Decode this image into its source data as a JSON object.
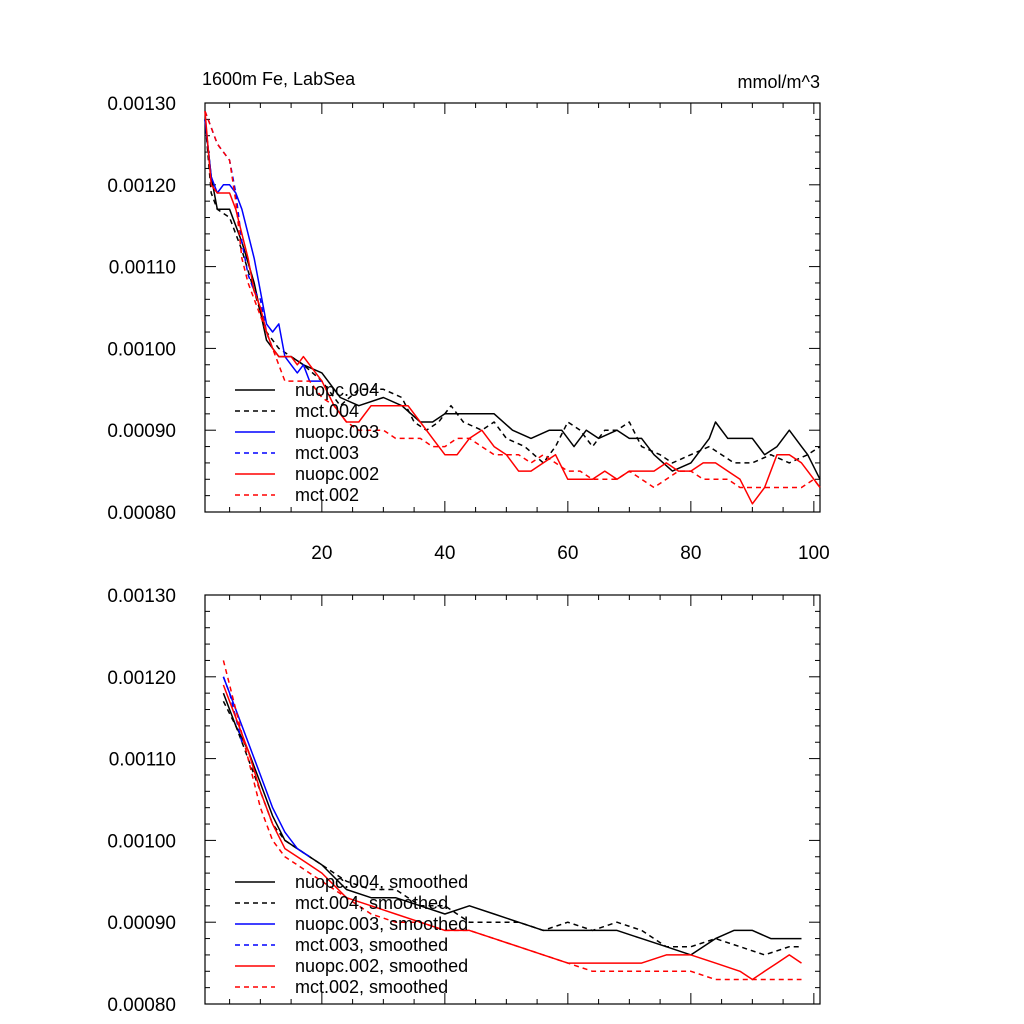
{
  "chart_data": [
    {
      "type": "line",
      "title_left": "1600m Fe, LabSea",
      "title_right": "mmol/m^3",
      "xlim": [
        1,
        101
      ],
      "ylim": [
        0.0008,
        0.0013
      ],
      "xticks": [
        20,
        40,
        60,
        80,
        100
      ],
      "yticks": [
        0.0008,
        0.0009,
        0.001,
        0.0011,
        0.0012,
        0.0013
      ],
      "ytick_labels": [
        "0.00080",
        "0.00090",
        "0.00100",
        "0.00110",
        "0.00120",
        "0.00130"
      ],
      "show_xtick_labels": true,
      "legend_location": "lower-left",
      "series": [
        {
          "name": "nuopc.004",
          "color": "#000000",
          "dash": "solid",
          "x": [
            1,
            2,
            3,
            5,
            7,
            9,
            11,
            13,
            15,
            17,
            20,
            23,
            26,
            30,
            33,
            36,
            38,
            40,
            44,
            48,
            51,
            54,
            57,
            59,
            61,
            63,
            65,
            68,
            70,
            72,
            74,
            77,
            80,
            83,
            84,
            86,
            88,
            90,
            92,
            94,
            96,
            98,
            99,
            101
          ],
          "y": [
            0.00128,
            0.00121,
            0.00117,
            0.00117,
            0.00113,
            0.00108,
            0.00101,
            0.00099,
            0.00099,
            0.00098,
            0.00097,
            0.00094,
            0.00093,
            0.00094,
            0.00093,
            0.00091,
            0.00091,
            0.00092,
            0.00092,
            0.00092,
            0.0009,
            0.00089,
            0.0009,
            0.0009,
            0.00088,
            0.0009,
            0.00089,
            0.0009,
            0.00089,
            0.00089,
            0.00087,
            0.00085,
            0.00086,
            0.00089,
            0.00091,
            0.00089,
            0.00089,
            0.00089,
            0.00087,
            0.00088,
            0.0009,
            0.00088,
            0.00087,
            0.00084
          ]
        },
        {
          "name": "mct.004",
          "color": "#000000",
          "dash": "dashed",
          "x": [
            1,
            2,
            3,
            5,
            7,
            9,
            11,
            13,
            15,
            17,
            20,
            23,
            26,
            30,
            33,
            35,
            37,
            39,
            41,
            43,
            46,
            48,
            50,
            53,
            56,
            58,
            60,
            62,
            64,
            66,
            68,
            70,
            72,
            75,
            77,
            80,
            83,
            85,
            87,
            90,
            93,
            96,
            99,
            101
          ],
          "y": [
            0.00128,
            0.00119,
            0.00117,
            0.00116,
            0.00112,
            0.00107,
            0.00102,
            0.001,
            0.00099,
            0.00098,
            0.00096,
            0.00093,
            0.00095,
            0.00095,
            0.00094,
            0.00091,
            0.0009,
            0.00091,
            0.00093,
            0.00091,
            0.0009,
            0.00091,
            0.00089,
            0.00088,
            0.00086,
            0.00088,
            0.00091,
            0.0009,
            0.00088,
            0.0009,
            0.0009,
            0.00091,
            0.00088,
            0.00087,
            0.00086,
            0.00087,
            0.00088,
            0.00087,
            0.00086,
            0.00086,
            0.00087,
            0.00086,
            0.00087,
            0.00088
          ]
        },
        {
          "name": "nuopc.003",
          "color": "#0000ff",
          "dash": "solid",
          "x": [
            1,
            2,
            3,
            4,
            5,
            6,
            7,
            8,
            9,
            10,
            11,
            12,
            13,
            14,
            15,
            16,
            17,
            18,
            19,
            20
          ],
          "y": [
            0.00128,
            0.00121,
            0.00119,
            0.0012,
            0.0012,
            0.00119,
            0.00117,
            0.00114,
            0.00111,
            0.00107,
            0.00103,
            0.00102,
            0.00103,
            0.00099,
            0.00098,
            0.00097,
            0.00098,
            0.00096,
            0.00096,
            0.00096
          ]
        },
        {
          "name": "mct.003",
          "color": "#0000ff",
          "dash": "dashed",
          "x": [
            1,
            2,
            3,
            4,
            5,
            6,
            7,
            8,
            9,
            10,
            11,
            12
          ],
          "y": [
            0.00129,
            0.00127,
            0.00125,
            0.00124,
            0.00123,
            0.00119,
            0.00113,
            0.00109,
            0.00107,
            0.00106,
            0.00102,
            0.001
          ]
        },
        {
          "name": "nuopc.002",
          "color": "#ff0000",
          "dash": "solid",
          "x": [
            1,
            2,
            3,
            4,
            5,
            6,
            7,
            8,
            9,
            10,
            11,
            12,
            13,
            14,
            15,
            16,
            17,
            18,
            20,
            22,
            24,
            26,
            28,
            30,
            32,
            34,
            36,
            38,
            40,
            42,
            44,
            46,
            48,
            50,
            52,
            54,
            56,
            58,
            60,
            62,
            64,
            66,
            68,
            70,
            72,
            74,
            76,
            78,
            80,
            82,
            84,
            86,
            88,
            90,
            92,
            94,
            96,
            98,
            100,
            101
          ],
          "y": [
            0.00129,
            0.0012,
            0.00119,
            0.00119,
            0.00119,
            0.00117,
            0.00114,
            0.00111,
            0.00107,
            0.00105,
            0.00102,
            0.001,
            0.00099,
            0.00099,
            0.00099,
            0.00098,
            0.00099,
            0.00098,
            0.00096,
            0.00093,
            0.00091,
            0.00091,
            0.00093,
            0.00093,
            0.00093,
            0.00093,
            0.00091,
            0.00089,
            0.00087,
            0.00087,
            0.00089,
            0.0009,
            0.00088,
            0.00087,
            0.00085,
            0.00085,
            0.00086,
            0.00087,
            0.00084,
            0.00084,
            0.00084,
            0.00085,
            0.00084,
            0.00085,
            0.00085,
            0.00085,
            0.00086,
            0.00085,
            0.00085,
            0.00086,
            0.00086,
            0.00085,
            0.00084,
            0.00081,
            0.00083,
            0.00087,
            0.00087,
            0.00086,
            0.00084,
            0.00083
          ]
        },
        {
          "name": "mct.002",
          "color": "#ff0000",
          "dash": "dashed",
          "x": [
            1,
            2,
            3,
            4,
            5,
            6,
            7,
            8,
            10,
            12,
            14,
            16,
            18,
            20,
            22,
            24,
            26,
            28,
            30,
            32,
            34,
            36,
            38,
            40,
            42,
            44,
            46,
            48,
            50,
            52,
            54,
            56,
            58,
            60,
            62,
            64,
            66,
            68,
            70,
            72,
            74,
            76,
            78,
            80,
            82,
            84,
            86,
            88,
            90,
            92,
            94,
            96,
            98,
            100,
            101
          ],
          "y": [
            0.00129,
            0.00127,
            0.00125,
            0.00124,
            0.00123,
            0.00118,
            0.00111,
            0.00108,
            0.00104,
            0.001,
            0.00096,
            0.00096,
            0.00096,
            0.00094,
            0.00093,
            0.00091,
            0.0009,
            0.0009,
            0.0009,
            0.00089,
            0.00089,
            0.00089,
            0.00088,
            0.00088,
            0.00089,
            0.00089,
            0.00088,
            0.00087,
            0.00087,
            0.00087,
            0.00086,
            0.00087,
            0.00086,
            0.00085,
            0.00085,
            0.00084,
            0.00084,
            0.00084,
            0.00085,
            0.00084,
            0.00083,
            0.00084,
            0.00085,
            0.00085,
            0.00084,
            0.00084,
            0.00084,
            0.00083,
            0.00083,
            0.00083,
            0.00083,
            0.00083,
            0.00083,
            0.00084,
            0.00083
          ]
        }
      ]
    },
    {
      "type": "line",
      "xlim": [
        1,
        101
      ],
      "ylim": [
        0.0008,
        0.0013
      ],
      "xticks": [
        20,
        40,
        60,
        80,
        100
      ],
      "yticks": [
        0.0008,
        0.0009,
        0.001,
        0.0011,
        0.0012,
        0.0013
      ],
      "ytick_labels": [
        "0.00080",
        "0.00090",
        "0.00100",
        "0.00110",
        "0.00120",
        "0.00130"
      ],
      "show_xtick_labels": false,
      "legend_location": "lower-left",
      "series": [
        {
          "name": "nuopc.004, smoothed",
          "color": "#000000",
          "dash": "solid",
          "x": [
            4,
            6,
            8,
            10,
            12,
            14,
            16,
            18,
            20,
            24,
            28,
            32,
            36,
            40,
            44,
            48,
            52,
            56,
            60,
            64,
            68,
            72,
            76,
            80,
            84,
            87,
            90,
            93,
            96,
            98
          ],
          "y": [
            0.00118,
            0.00114,
            0.00111,
            0.00107,
            0.00103,
            0.001,
            0.00099,
            0.00098,
            0.00097,
            0.00094,
            0.00093,
            0.00093,
            0.00092,
            0.00091,
            0.00092,
            0.00091,
            0.0009,
            0.00089,
            0.00089,
            0.00089,
            0.00089,
            0.00088,
            0.00087,
            0.00086,
            0.00088,
            0.00089,
            0.00089,
            0.00088,
            0.00088,
            0.00088
          ]
        },
        {
          "name": "mct.004, smoothed",
          "color": "#000000",
          "dash": "dashed",
          "x": [
            4,
            6,
            8,
            10,
            12,
            14,
            16,
            18,
            20,
            24,
            28,
            32,
            36,
            40,
            44,
            48,
            52,
            56,
            60,
            64,
            68,
            72,
            76,
            80,
            84,
            88,
            92,
            96,
            98
          ],
          "y": [
            0.00117,
            0.00114,
            0.0011,
            0.00106,
            0.00102,
            0.001,
            0.00099,
            0.00098,
            0.00097,
            0.00095,
            0.00094,
            0.00094,
            0.00092,
            0.00092,
            0.0009,
            0.0009,
            0.0009,
            0.00089,
            0.0009,
            0.00089,
            0.0009,
            0.00089,
            0.00087,
            0.00087,
            0.00088,
            0.00087,
            0.00086,
            0.00087,
            0.00087
          ]
        },
        {
          "name": "nuopc.003, smoothed",
          "color": "#0000ff",
          "dash": "solid",
          "x": [
            4,
            6,
            8,
            10,
            12,
            14,
            16,
            18
          ],
          "y": [
            0.0012,
            0.00116,
            0.00112,
            0.00108,
            0.00104,
            0.00101,
            0.00099,
            0.00098
          ]
        },
        {
          "name": "mct.003, smoothed",
          "color": "#0000ff",
          "dash": "dashed",
          "x": [
            4,
            5,
            6,
            7
          ],
          "y": [
            0.0012,
            0.00118,
            0.00115,
            0.00112
          ]
        },
        {
          "name": "nuopc.002, smoothed",
          "color": "#ff0000",
          "dash": "solid",
          "x": [
            4,
            6,
            8,
            10,
            12,
            14,
            16,
            18,
            20,
            24,
            28,
            32,
            36,
            40,
            44,
            48,
            52,
            56,
            60,
            64,
            68,
            72,
            76,
            80,
            84,
            88,
            90,
            92,
            94,
            96,
            98
          ],
          "y": [
            0.00119,
            0.00115,
            0.00111,
            0.00106,
            0.00102,
            0.00099,
            0.00098,
            0.00097,
            0.00096,
            0.00093,
            0.00092,
            0.00091,
            0.0009,
            0.00089,
            0.00089,
            0.00088,
            0.00087,
            0.00086,
            0.00085,
            0.00085,
            0.00085,
            0.00085,
            0.00086,
            0.00086,
            0.00085,
            0.00084,
            0.00083,
            0.00084,
            0.00085,
            0.00086,
            0.00085
          ]
        },
        {
          "name": "mct.002, smoothed",
          "color": "#ff0000",
          "dash": "dashed",
          "x": [
            4,
            6,
            8,
            10,
            12,
            14,
            16,
            18,
            20,
            24,
            28,
            32,
            36,
            40,
            44,
            48,
            52,
            56,
            60,
            64,
            68,
            72,
            76,
            80,
            84,
            88,
            92,
            96,
            98
          ],
          "y": [
            0.00122,
            0.00116,
            0.0011,
            0.00104,
            0.001,
            0.00098,
            0.00097,
            0.00096,
            0.00095,
            0.00093,
            0.00091,
            0.0009,
            0.0009,
            0.00089,
            0.00089,
            0.00088,
            0.00087,
            0.00086,
            0.00085,
            0.00084,
            0.00084,
            0.00084,
            0.00084,
            0.00084,
            0.00083,
            0.00083,
            0.00083,
            0.00083,
            0.00083
          ]
        }
      ]
    }
  ]
}
